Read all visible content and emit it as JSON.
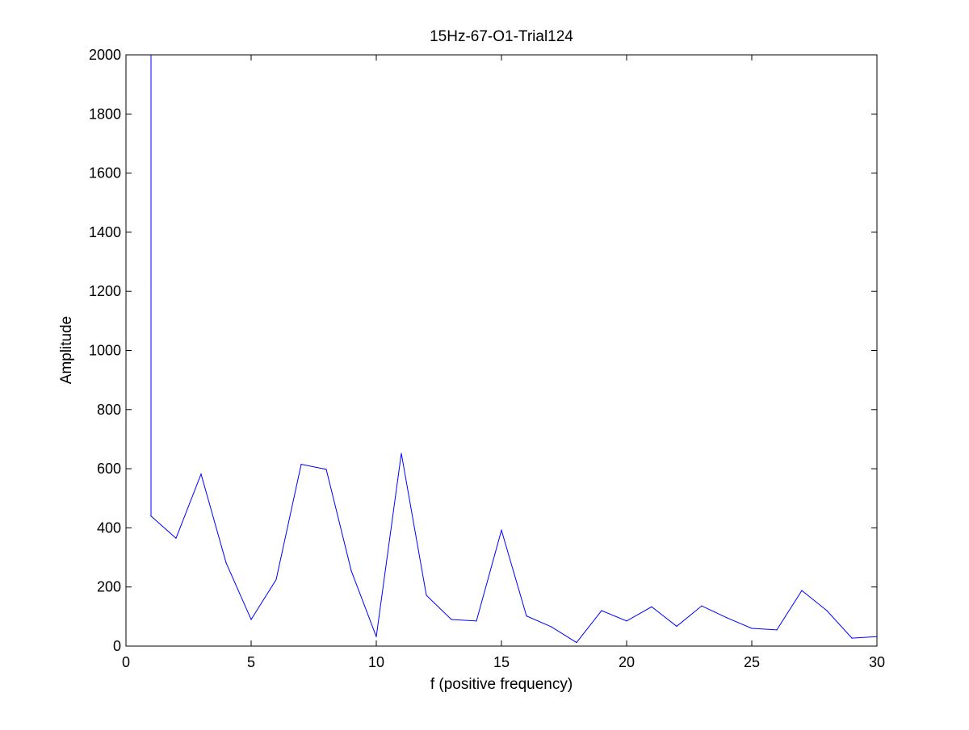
{
  "chart_data": {
    "type": "line",
    "title": "15Hz-67-O1-Trial124",
    "xlabel": "f (positive frequency)",
    "ylabel": "Amplitude",
    "xlim": [
      0,
      30
    ],
    "ylim": [
      0,
      2000
    ],
    "xticks": [
      0,
      5,
      10,
      15,
      20,
      25,
      30
    ],
    "yticks": [
      0,
      200,
      400,
      600,
      800,
      1000,
      1200,
      1400,
      1600,
      1800,
      2000
    ],
    "grid": false,
    "line_color": "#0000ff",
    "series": [
      {
        "x": [
          1.0,
          1.0,
          1.0,
          2,
          3,
          4,
          5,
          6,
          7,
          8,
          9,
          10,
          11,
          12,
          13,
          14,
          15,
          16,
          17,
          18,
          19,
          20,
          21,
          22,
          23,
          24,
          25,
          26,
          27,
          28,
          29,
          30
        ],
        "values": [
          2000,
          1220,
          440,
          365,
          582,
          282,
          90,
          225,
          615,
          598,
          255,
          32,
          652,
          172,
          90,
          85,
          392,
          102,
          65,
          12,
          120,
          85,
          133,
          67,
          136,
          96,
          60,
          55,
          188,
          120,
          27,
          32
        ]
      }
    ]
  }
}
